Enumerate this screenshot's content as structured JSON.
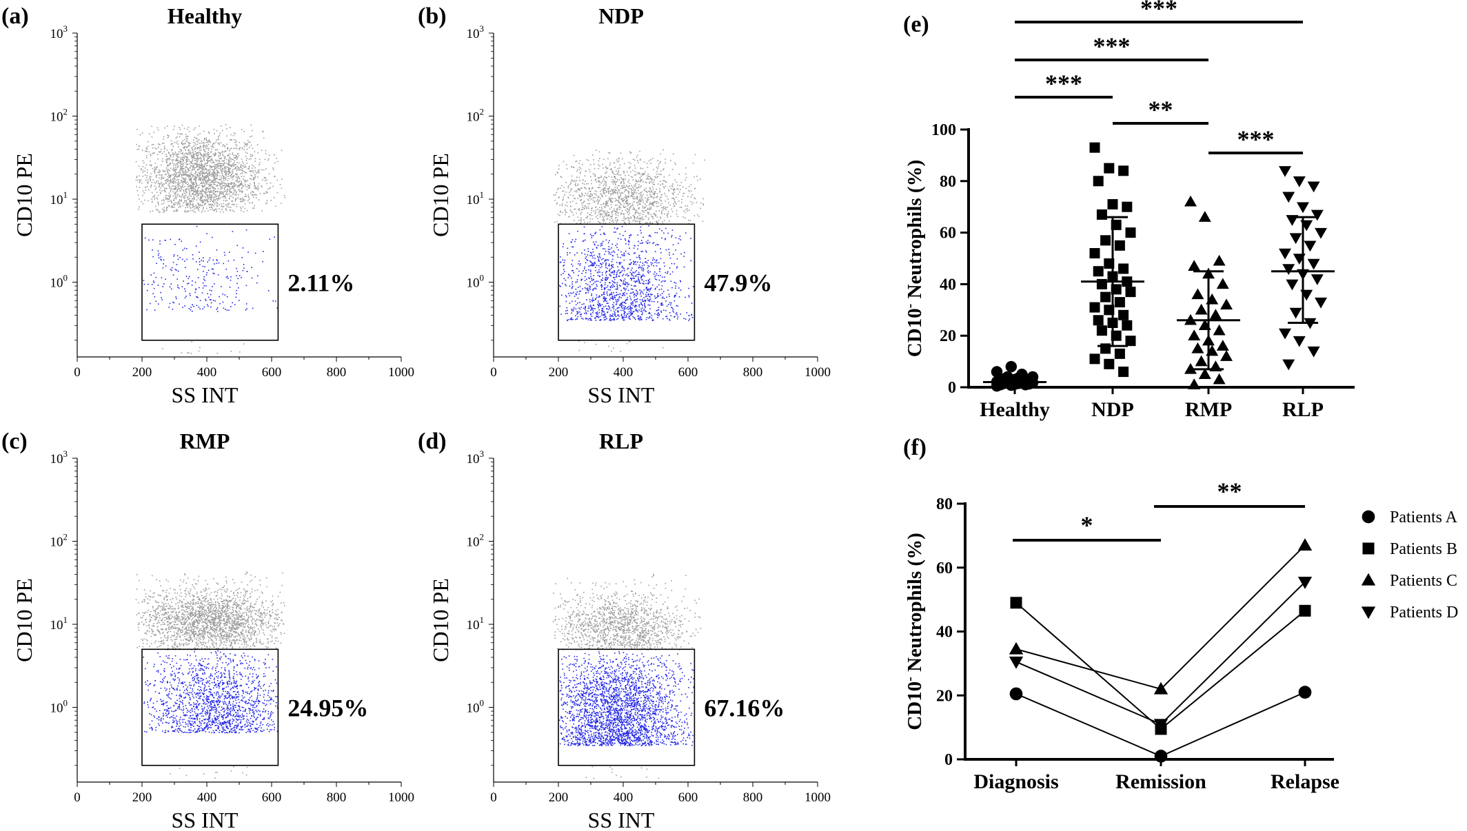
{
  "panels": [
    {
      "label": "(a)",
      "title": "Healthy",
      "percent": "2.11%",
      "xlabel": "SS INT",
      "ylabel": "CD10 PE",
      "xticks": [
        "0",
        "200",
        "400",
        "600",
        "800",
        "1000"
      ],
      "ytick_top": "10",
      "ytick_top_exp": "3",
      "yticks": [
        {
          "base": "10",
          "exp": "2"
        },
        {
          "base": "10",
          "exp": "1"
        },
        {
          "base": "10",
          "exp": "0"
        }
      ],
      "xlim": [
        0,
        1000
      ],
      "gate": {
        "x": [
          200,
          620
        ],
        "y": [
          0.2,
          5
        ]
      },
      "cloud": {
        "n": 2600,
        "cx": 380,
        "sx": 95,
        "cy": 18,
        "sy": 0.28,
        "xmin": 180,
        "xmax": 640,
        "ymin": 7,
        "ymax": 80
      },
      "blue": {
        "n": 260,
        "cx": 360,
        "sx": 110,
        "ymin": 0.45,
        "ymax": 4.9
      }
    },
    {
      "label": "(b)",
      "title": "NDP",
      "percent": "47.9%",
      "xlabel": "SS INT",
      "ylabel": "CD10 PE",
      "xticks": [
        "0",
        "200",
        "400",
        "600",
        "800",
        "1000"
      ],
      "ytick_top": "10",
      "ytick_top_exp": "3",
      "yticks": [
        {
          "base": "10",
          "exp": "2"
        },
        {
          "base": "10",
          "exp": "1"
        },
        {
          "base": "10",
          "exp": "0"
        }
      ],
      "xlim": [
        0,
        1000
      ],
      "gate": {
        "x": [
          200,
          620
        ],
        "y": [
          0.2,
          5
        ]
      },
      "cloud": {
        "n": 1500,
        "cx": 400,
        "sx": 110,
        "cy": 10,
        "sy": 0.25,
        "xmin": 180,
        "xmax": 650,
        "ymin": 5,
        "ymax": 40
      },
      "blue": {
        "n": 1300,
        "cx": 390,
        "sx": 100,
        "ymin": 0.35,
        "ymax": 4.9
      }
    },
    {
      "label": "(c)",
      "title": "RMP",
      "percent": "24.95%",
      "xlabel": "SS INT",
      "ylabel": "CD10 PE",
      "xticks": [
        "0",
        "200",
        "400",
        "600",
        "800",
        "1000"
      ],
      "ytick_top": "10",
      "ytick_top_exp": "3",
      "yticks": [
        {
          "base": "10",
          "exp": "2"
        },
        {
          "base": "10",
          "exp": "1"
        },
        {
          "base": "10",
          "exp": "0"
        }
      ],
      "xlim": [
        0,
        1000
      ],
      "gate": {
        "x": [
          200,
          620
        ],
        "y": [
          0.2,
          5
        ]
      },
      "cloud": {
        "n": 2300,
        "cx": 410,
        "sx": 110,
        "cy": 11,
        "sy": 0.2,
        "xmin": 180,
        "xmax": 640,
        "ymin": 5,
        "ymax": 50
      },
      "blue": {
        "n": 1500,
        "cx": 420,
        "sx": 105,
        "ymin": 0.5,
        "ymax": 4.9
      }
    },
    {
      "label": "(d)",
      "title": "RLP",
      "percent": "67.16%",
      "xlabel": "SS INT",
      "ylabel": "CD10 PE",
      "xticks": [
        "0",
        "200",
        "400",
        "600",
        "800",
        "1000"
      ],
      "ytick_top": "10",
      "ytick_top_exp": "3",
      "yticks": [
        {
          "base": "10",
          "exp": "2"
        },
        {
          "base": "10",
          "exp": "1"
        },
        {
          "base": "10",
          "exp": "0"
        }
      ],
      "xlim": [
        0,
        1000
      ],
      "gate": {
        "x": [
          200,
          620
        ],
        "y": [
          0.2,
          5
        ]
      },
      "cloud": {
        "n": 1500,
        "cx": 390,
        "sx": 100,
        "cy": 9,
        "sy": 0.22,
        "xmin": 180,
        "xmax": 640,
        "ymin": 5,
        "ymax": 60
      },
      "blue": {
        "n": 2600,
        "cx": 380,
        "sx": 100,
        "ymin": 0.35,
        "ymax": 4.9
      }
    }
  ],
  "chart_data": [
    {
      "type": "scatter",
      "subtype": "dot-plot with mean ± SD",
      "label": "(e)",
      "ylabel": "CD10- Neutrophils (%)",
      "ylabel_main": "CD10",
      "ylabel_sup": "-",
      "ylabel_rest": " Neutrophils (%)",
      "categories": [
        "Healthy",
        "NDP",
        "RMP",
        "RLP"
      ],
      "markers": [
        "circle",
        "square",
        "triangle-up",
        "triangle-down"
      ],
      "ylim": [
        0,
        100
      ],
      "yticks": [
        "0",
        "20",
        "40",
        "60",
        "80",
        "100"
      ],
      "groups": [
        {
          "name": "Healthy",
          "mean": 2,
          "sd_low": 0.5,
          "sd_high": 3.5,
          "values": [
            0.5,
            0.8,
            1,
            1,
            1.2,
            1.3,
            1.5,
            1.5,
            1.8,
            2,
            2,
            2.1,
            2.2,
            2.5,
            2.6,
            3,
            3,
            3.2,
            3.5,
            4,
            4,
            5,
            6,
            8
          ]
        },
        {
          "name": "NDP",
          "mean": 41,
          "sd_low": 16,
          "sd_high": 66,
          "values": [
            93,
            85,
            84,
            80,
            71,
            70,
            67,
            63,
            60,
            57,
            55,
            52,
            48,
            46,
            45,
            43,
            41,
            40,
            38,
            37,
            35,
            33,
            31,
            30,
            28,
            26,
            25,
            24,
            22,
            20,
            18,
            15,
            13,
            11,
            9,
            6
          ]
        },
        {
          "name": "RMP",
          "mean": 26,
          "sd_low": 7,
          "sd_high": 45,
          "values": [
            72,
            66,
            49,
            47,
            44,
            40,
            36,
            34,
            32,
            30,
            28,
            26,
            24,
            22,
            20,
            18,
            16,
            15,
            14,
            12,
            10,
            8,
            7,
            5,
            3,
            1
          ]
        },
        {
          "name": "RLP",
          "mean": 45,
          "sd_low": 25,
          "sd_high": 66,
          "values": [
            84,
            80,
            78,
            74,
            70,
            67,
            65,
            63,
            60,
            58,
            55,
            52,
            50,
            48,
            46,
            44,
            42,
            40,
            36,
            33,
            29,
            25,
            21,
            18,
            14,
            9
          ]
        }
      ],
      "significance": [
        {
          "from": "Healthy",
          "to": "RLP",
          "label": "***"
        },
        {
          "from": "Healthy",
          "to": "RMP",
          "label": "***"
        },
        {
          "from": "Healthy",
          "to": "NDP",
          "label": "***"
        },
        {
          "from": "NDP",
          "to": "RMP",
          "label": "**"
        },
        {
          "from": "RMP",
          "to": "RLP",
          "label": "***"
        }
      ]
    },
    {
      "type": "line",
      "label": "(f)",
      "ylabel": "CD10- Neutrophils (%)",
      "ylabel_main": "CD10",
      "ylabel_sup": "-",
      "ylabel_rest": " Neutrophils (%)",
      "categories": [
        "Diagnosis",
        "Remission",
        "Relapse"
      ],
      "ylim": [
        0,
        80
      ],
      "yticks": [
        "0",
        "20",
        "40",
        "60",
        "80"
      ],
      "series": [
        {
          "name": "Patients A",
          "marker": "circle",
          "values": [
            20.5,
            1,
            21
          ]
        },
        {
          "name": "Patients B",
          "marker": "square",
          "values": [
            49,
            9.5,
            46.5
          ]
        },
        {
          "name": "Patients C",
          "marker": "triangle-up",
          "values": [
            34.5,
            22,
            67
          ]
        },
        {
          "name": "Patients D",
          "marker": "triangle-down",
          "values": [
            30.5,
            11,
            55.5
          ]
        }
      ],
      "significance": [
        {
          "from": "Diagnosis",
          "to": "Remission",
          "label": "*"
        },
        {
          "from": "Remission",
          "to": "Relapse",
          "label": "**"
        }
      ]
    }
  ]
}
